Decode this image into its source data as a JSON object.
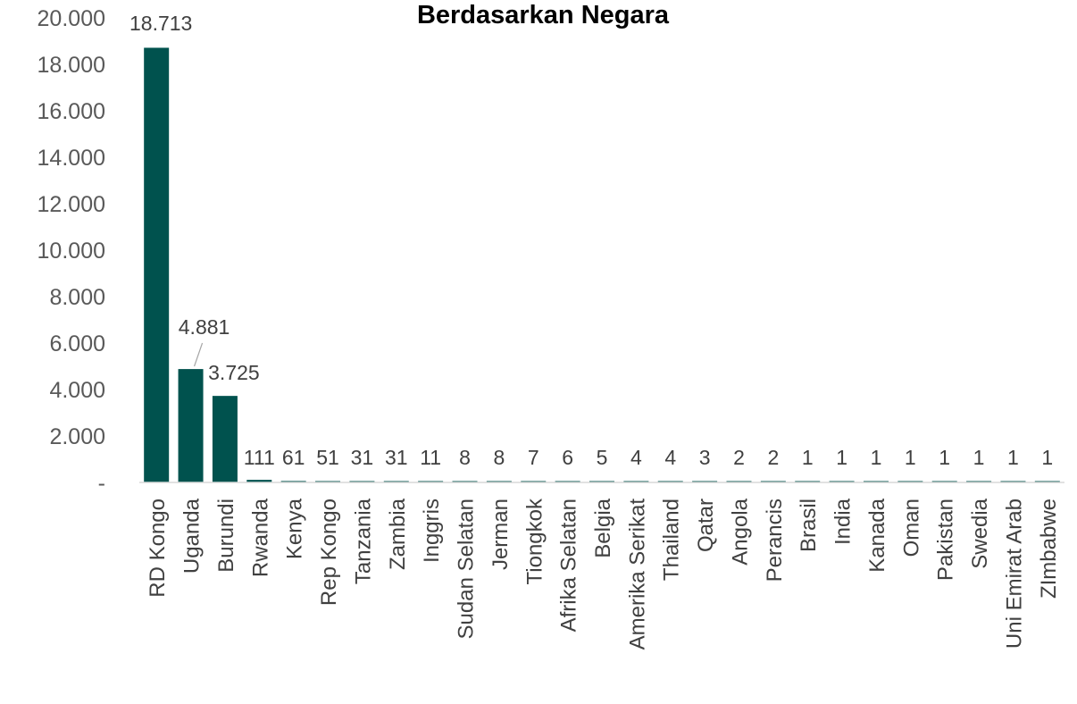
{
  "chart_data": {
    "type": "bar",
    "title": "Berdasarkan Negara",
    "xlabel": "",
    "ylabel": "",
    "ylim": [
      0,
      20000
    ],
    "yticks": [
      0,
      2000,
      4000,
      6000,
      8000,
      10000,
      12000,
      14000,
      16000,
      18000,
      20000
    ],
    "ytick_labels": [
      "-",
      "2.000",
      "4.000",
      "6.000",
      "8.000",
      "10.000",
      "12.000",
      "14.000",
      "16.000",
      "18.000",
      "20.000"
    ],
    "grid": false,
    "legend": "none",
    "bar_color": "#00524E",
    "categories": [
      "RD Kongo",
      "Uganda",
      "Burundi",
      "Rwanda",
      "Kenya",
      "Rep Kongo",
      "Tanzania",
      "Zambia",
      "Inggris",
      "Sudan Selatan",
      "Jerman",
      "Tiongkok",
      "Afrika Selatan",
      "Belgia",
      "Amerika Serikat",
      "Thailand",
      "Qatar",
      "Angola",
      "Perancis",
      "Brasil",
      "India",
      "Kanada",
      "Oman",
      "Pakistan",
      "Swedia",
      "Uni Emirat Arab",
      "ZImbabwe"
    ],
    "values": [
      18713,
      4881,
      3725,
      111,
      61,
      51,
      31,
      31,
      11,
      8,
      8,
      7,
      6,
      5,
      4,
      4,
      3,
      2,
      2,
      1,
      1,
      1,
      1,
      1,
      1,
      1,
      1
    ],
    "data_labels": [
      "18.713",
      "4.881",
      "3.725",
      "111",
      "61",
      "51",
      "31",
      "31",
      "11",
      "8",
      "8",
      "7",
      "6",
      "5",
      "4",
      "4",
      "3",
      "2",
      "2",
      "1",
      "1",
      "1",
      "1",
      "1",
      "1",
      "1",
      "1"
    ]
  }
}
